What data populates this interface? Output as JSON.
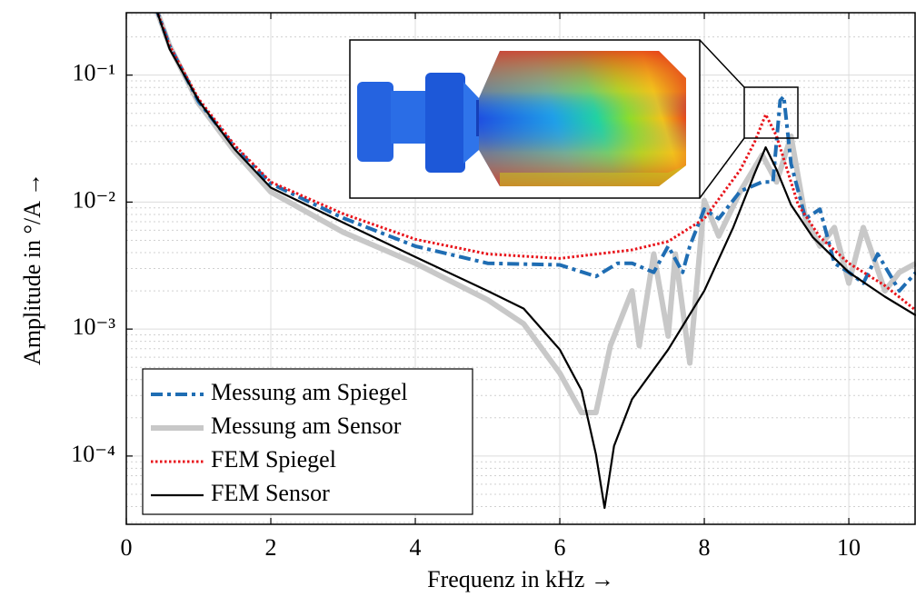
{
  "chart_data": {
    "type": "line",
    "xlabel": "Frequenz in kHz →",
    "ylabel": "Amplitude in °/A →",
    "xlim": [
      0,
      10.93
    ],
    "xticks": [
      0,
      2,
      4,
      6,
      8,
      10
    ],
    "ylim": [
      2.9e-05,
      0.31
    ],
    "log_y": true,
    "yticks": [
      {
        "value": 0.0001,
        "label": "10⁻⁴"
      },
      {
        "value": 0.001,
        "label": "10⁻³"
      },
      {
        "value": 0.01,
        "label": "10⁻²"
      },
      {
        "value": 0.1,
        "label": "10⁻¹"
      }
    ],
    "grid": true,
    "minor_grid": true,
    "legend": "lower left",
    "series": [
      {
        "name": "Messung am Spiegel",
        "color": "#1f6db3",
        "style": "dashdot",
        "x": [
          0.4,
          0.6,
          1,
          1.5,
          2,
          3,
          4,
          5,
          6,
          6.5,
          6.8,
          7,
          7.3,
          7.5,
          7.7,
          7.8,
          8,
          8.2,
          8.5,
          8.8,
          8.95,
          9.05,
          9.1,
          9.2,
          9.4,
          9.6,
          9.8,
          10,
          10.2,
          10.4,
          10.7,
          10.93
        ],
        "values": [
          0.35,
          0.17,
          0.062,
          0.027,
          0.014,
          0.0075,
          0.0045,
          0.0033,
          0.0032,
          0.0026,
          0.0033,
          0.0033,
          0.0028,
          0.0045,
          0.0028,
          0.0045,
          0.0088,
          0.0074,
          0.0122,
          0.0144,
          0.0144,
          0.063,
          0.068,
          0.02,
          0.0074,
          0.0088,
          0.0033,
          0.0028,
          0.0023,
          0.0039,
          0.002,
          0.0028
        ]
      },
      {
        "name": "Messung am Sensor",
        "color": "#c8c8c8",
        "style": "thick",
        "x": [
          0.4,
          0.6,
          1,
          1.5,
          2,
          3,
          4,
          5,
          5.5,
          6,
          6.3,
          6.5,
          6.7,
          7,
          7.1,
          7.3,
          7.5,
          7.6,
          7.8,
          8,
          8.2,
          8.5,
          8.8,
          9,
          9.2,
          9.4,
          9.6,
          9.8,
          10,
          10.2,
          10.5,
          10.7,
          10.93
        ],
        "values": [
          0.35,
          0.17,
          0.06,
          0.025,
          0.012,
          0.0058,
          0.0033,
          0.0017,
          0.0011,
          0.00045,
          0.00022,
          0.00022,
          0.00074,
          0.002,
          0.00074,
          0.0039,
          0.00088,
          0.0039,
          0.00054,
          0.0103,
          0.0054,
          0.0122,
          0.0235,
          0.0144,
          0.033,
          0.0074,
          0.0045,
          0.0063,
          0.0023,
          0.0063,
          0.002,
          0.0028,
          0.0033
        ]
      },
      {
        "name": "FEM Spiegel",
        "color": "#e8141b",
        "style": "dotted",
        "x": [
          0.4,
          0.6,
          1,
          1.5,
          2,
          3,
          4,
          5,
          6,
          7,
          7.5,
          8,
          8.5,
          8.7,
          8.85,
          9,
          9.3,
          9.6,
          10,
          10.5,
          10.93
        ],
        "values": [
          0.35,
          0.17,
          0.065,
          0.028,
          0.0144,
          0.0081,
          0.0051,
          0.0039,
          0.0036,
          0.0042,
          0.0049,
          0.0074,
          0.018,
          0.03,
          0.049,
          0.033,
          0.0095,
          0.0053,
          0.0033,
          0.0022,
          0.0014
        ]
      },
      {
        "name": "FEM Sensor",
        "color": "#000000",
        "style": "solid",
        "x": [
          0.4,
          0.6,
          1,
          1.5,
          2,
          3,
          4,
          5,
          5.5,
          6,
          6.3,
          6.5,
          6.62,
          6.75,
          7,
          7.5,
          8,
          8.4,
          8.7,
          8.85,
          9,
          9.2,
          9.5,
          10,
          10.5,
          10.93
        ],
        "values": [
          0.35,
          0.16,
          0.063,
          0.026,
          0.013,
          0.0069,
          0.0037,
          0.002,
          0.00145,
          0.00069,
          0.00033,
          0.000103,
          3.9e-05,
          0.00012,
          0.00028,
          0.00069,
          0.002,
          0.0063,
          0.017,
          0.027,
          0.018,
          0.0095,
          0.0053,
          0.0028,
          0.0018,
          0.00128
        ]
      }
    ]
  }
}
